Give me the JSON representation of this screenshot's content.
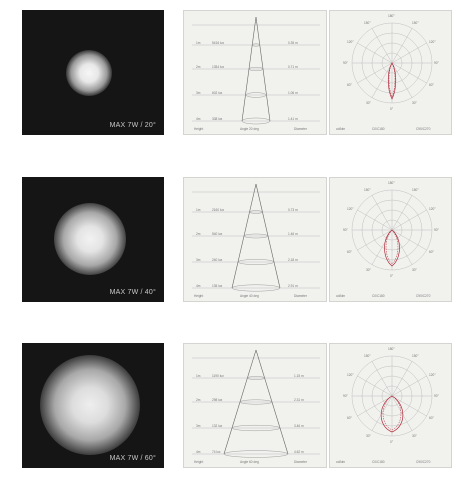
{
  "rows": [
    {
      "caption": "MAX 7W / 20°",
      "glow_color": "#f4f4f4",
      "distances": [
        "1m",
        "2m",
        "3m",
        "4m"
      ],
      "illuminance": [
        "5416 lux",
        "1354 lux",
        "602 lux",
        "338 lux"
      ],
      "diameters": [
        "0.35 m",
        "0.71 m",
        "1.06 m",
        "1.41 m"
      ],
      "footer": [
        "Height",
        "Angle 20 deg",
        "Diameter"
      ],
      "polar_footer": [
        "cd/klm",
        "C0/C180",
        "C90/C270"
      ]
    },
    {
      "caption": "MAX 7W / 40°",
      "glow_color": "#f1f1f1",
      "distances": [
        "1m",
        "2m",
        "3m",
        "4m"
      ],
      "illuminance": [
        "2160 lux",
        "540 lux",
        "240 lux",
        "135 lux"
      ],
      "diameters": [
        "0.73 m",
        "1.46 m",
        "2.18 m",
        "2.91 m"
      ],
      "footer": [
        "Height",
        "Angle 40 deg",
        "Diameter"
      ],
      "polar_footer": [
        "cd/klm",
        "C0/C180",
        "C90/C270"
      ]
    },
    {
      "caption": "MAX 7W / 60°",
      "glow_color": "#eeeeee",
      "distances": [
        "1m",
        "2m",
        "3m",
        "4m"
      ],
      "illuminance": [
        "1190 lux",
        "298 lux",
        "132 lux",
        "74 lux"
      ],
      "diameters": [
        "1.15 m",
        "2.31 m",
        "3.46 m",
        "4.62 m"
      ],
      "footer": [
        "Height",
        "Angle 60 deg",
        "Diameter"
      ],
      "polar_footer": [
        "cd/klm",
        "C0/C180",
        "C90/C270"
      ]
    }
  ],
  "polar_angles": [
    "180°",
    "150°",
    "150°",
    "120°",
    "120°",
    "90°",
    "90°",
    "60°",
    "60°",
    "30°",
    "30°",
    "0°"
  ],
  "colors": {
    "beam_background": "#151515",
    "panel_background": "#f1f1ee",
    "grid_line": "#b9b9b9",
    "curve_red": "#b02a3a"
  }
}
